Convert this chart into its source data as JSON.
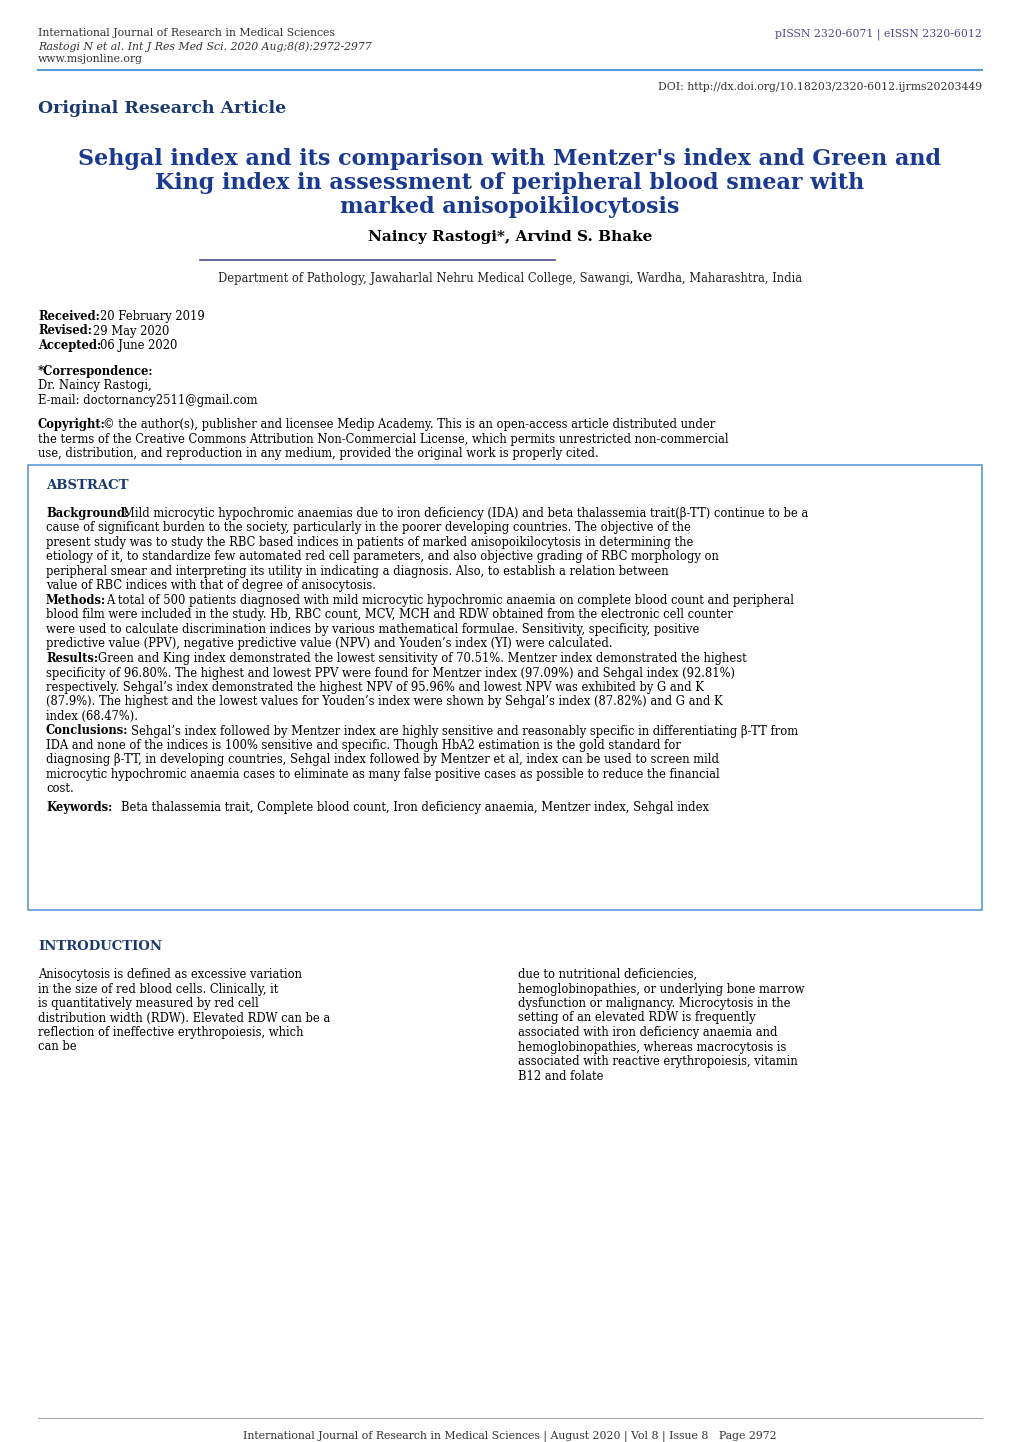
{
  "header_line1": "International Journal of Research in Medical Sciences",
  "header_line2": "Rastogi N et al. Int J Res Med Sci. 2020 Aug;8(8):2972-2977",
  "header_line3": "www.msjonline.org",
  "header_right": "pISSN 2320-6071 | eISSN 2320-6012",
  "doi": "DOI: http://dx.doi.org/10.18203/2320-6012.ijrms20203449",
  "article_type": "Original Research Article",
  "title_line1": "Sehgal index and its comparison with Mentzer's index and Green and",
  "title_line2": "King index in assessment of peripheral blood smear with",
  "title_line3": "marked anisopoikilocytosis",
  "authors": "Naincy Rastogi*, Arvind S. Bhake",
  "department": "Department of Pathology, Jawaharlal Nehru Medical College, Sawangi, Wardha, Maharashtra, India",
  "abstract_title": "ABSTRACT",
  "background_label": "Background:",
  "background_text": "Mild microcytic hypochromic anaemias due to iron deficiency (IDA) and beta thalassemia trait(β-TT) continue to be a cause of significant burden to the society, particularly in the poorer developing countries. The objective of the present study was to study the RBC based indices in patients of marked anisopoikilocytosis in determining the etiology of it, to standardize few automated red cell parameters, and also objective grading of RBC morphology on peripheral smear and interpreting its utility in indicating a diagnosis. Also, to establish a relation between value of RBC indices with that of degree of anisocytosis.",
  "methods_label": "Methods:",
  "methods_text": "A total of 500 patients diagnosed with mild microcytic hypochromic anaemia on complete blood count and peripheral blood film were included in the study. Hb, RBC count, MCV, MCH and RDW obtained from the electronic cell counter were used to calculate discrimination indices by various mathematical formulae. Sensitivity, specificity, positive predictive value (PPV), negative predictive value (NPV) and Youden’s index (YI) were calculated.",
  "results_label": "Results:",
  "results_text": "Green and King index demonstrated the lowest sensitivity of 70.51%. Mentzer index demonstrated the highest specificity of 96.80%. The highest and lowest PPV were found for Mentzer index (97.09%) and Sehgal index (92.81%) respectively. Sehgal’s index demonstrated the highest NPV of 95.96% and lowest NPV was exhibited by G and K (87.9%). The highest and the lowest values for Youden’s index were shown by Sehgal’s index (87.82%) and G and K index (68.47%).",
  "conclusions_label": "Conclusions:",
  "conclusions_text": "Sehgal’s index followed by Mentzer index are highly sensitive and reasonably specific in differentiating β-TT from IDA and none of the indices is 100% sensitive and specific. Though HbA2 estimation is the gold standard for diagnosing β-TT, in developing countries, Sehgal index followed by Mentzer et al, index can be used to screen mild microcytic hypochromic anaemia cases to eliminate as many false positive cases as possible to reduce the financial cost.",
  "keywords_label": "Keywords:",
  "keywords_text": "Beta thalassemia trait, Complete blood count, Iron deficiency anaemia, Mentzer index, Sehgal index",
  "intro_title": "INTRODUCTION",
  "intro_left": "Anisocytosis is defined as excessive variation in the size of red blood cells. Clinically, it is quantitatively measured by red cell distribution width (RDW). Elevated RDW can be a reflection of ineffective erythropoiesis, which can be",
  "intro_right": "due to nutritional deficiencies, hemoglobinopathies, or underlying bone marrow dysfunction or malignancy. Microcytosis in the setting of an elevated RDW is frequently associated with iron deficiency anaemia and hemoglobinopathies, whereas macrocytosis is associated with reactive erythropoiesis, vitamin B12 and folate",
  "footer": "International Journal of Research in Medical Sciences | August 2020 | Vol 8 | Issue 8   Page 2972",
  "blue_dark": "#1a3a6b",
  "title_blue": "#1a3a8f",
  "abstract_border": "#5b9bd5",
  "intro_blue": "#1a3a6b",
  "sep_color": "#5b9bd5"
}
